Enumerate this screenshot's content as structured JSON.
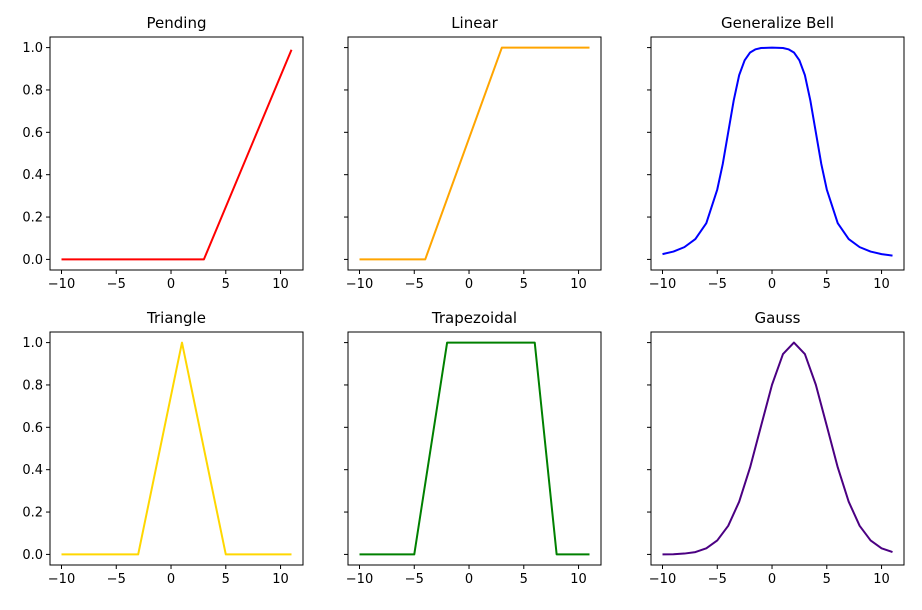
{
  "figure": {
    "x_ticks": [
      "−10",
      "−5",
      "0",
      "5",
      "10"
    ],
    "x_tick_values": [
      -10,
      -5,
      0,
      5,
      10
    ],
    "y_ticks": [
      "0.0",
      "0.2",
      "0.4",
      "0.6",
      "0.8",
      "1.0"
    ],
    "y_tick_values": [
      0,
      0.2,
      0.4,
      0.6,
      0.8,
      1.0
    ],
    "shared_y_axis_per_row": true
  },
  "chart_data": [
    {
      "type": "line",
      "title": "Pending",
      "xlabel": "",
      "ylabel": "",
      "xlim": [
        -11.05,
        12.05
      ],
      "ylim": [
        -0.05,
        1.05
      ],
      "grid": false,
      "color": "#ff0000",
      "series": [
        {
          "x": [
            -10,
            3,
            11
          ],
          "y": [
            0,
            0,
            0.99
          ]
        }
      ]
    },
    {
      "type": "line",
      "title": "Linear",
      "xlabel": "",
      "ylabel": "",
      "xlim": [
        -11.05,
        12.05
      ],
      "ylim": [
        -0.05,
        1.05
      ],
      "grid": false,
      "color": "#ffa500",
      "series": [
        {
          "x": [
            -10,
            -4,
            3,
            11
          ],
          "y": [
            0,
            0,
            1,
            1
          ]
        }
      ]
    },
    {
      "type": "line",
      "title": "Generalize Bell",
      "xlabel": "",
      "ylabel": "",
      "xlim": [
        -11.05,
        12.05
      ],
      "ylim": [
        -0.05,
        1.05
      ],
      "grid": false,
      "color": "#0000ff",
      "series": [
        {
          "x": [
            -10,
            -9,
            -8,
            -7,
            -6,
            -5,
            -4.5,
            -4,
            -3.5,
            -3,
            -2.5,
            -2,
            -1.5,
            -1,
            0,
            1,
            1.5,
            2,
            2.5,
            3,
            3.5,
            4,
            4.5,
            5,
            6,
            7,
            8,
            9,
            10,
            11
          ],
          "y": [
            0.025,
            0.037,
            0.058,
            0.096,
            0.171,
            0.33,
            0.45,
            0.6,
            0.75,
            0.87,
            0.94,
            0.977,
            0.992,
            0.998,
            1.0,
            0.998,
            0.992,
            0.977,
            0.94,
            0.87,
            0.75,
            0.6,
            0.45,
            0.33,
            0.171,
            0.096,
            0.058,
            0.037,
            0.025,
            0.018
          ]
        }
      ]
    },
    {
      "type": "line",
      "title": "Triangle",
      "xlabel": "",
      "ylabel": "",
      "xlim": [
        -11.05,
        12.05
      ],
      "ylim": [
        -0.05,
        1.05
      ],
      "grid": false,
      "color": "#ffd700",
      "series": [
        {
          "x": [
            -10,
            -3,
            1,
            5,
            11
          ],
          "y": [
            0,
            0,
            1,
            0,
            0
          ]
        }
      ]
    },
    {
      "type": "line",
      "title": "Trapezoidal",
      "xlabel": "",
      "ylabel": "",
      "xlim": [
        -11.05,
        12.05
      ],
      "ylim": [
        -0.05,
        1.05
      ],
      "grid": false,
      "color": "#008000",
      "series": [
        {
          "x": [
            -10,
            -5,
            -2,
            6,
            8,
            11
          ],
          "y": [
            0,
            0,
            1,
            1,
            0,
            0
          ]
        }
      ]
    },
    {
      "type": "line",
      "title": "Gauss",
      "xlabel": "",
      "ylabel": "",
      "xlim": [
        -11.05,
        12.05
      ],
      "ylim": [
        -0.05,
        1.05
      ],
      "grid": false,
      "color": "#4b0082",
      "series": [
        {
          "x": [
            -10,
            -9,
            -8,
            -7,
            -6,
            -5,
            -4,
            -3,
            -2,
            -1,
            0,
            1,
            2,
            3,
            4,
            5,
            6,
            7,
            8,
            9,
            10,
            11
          ],
          "y": [
            0.0,
            0.001,
            0.004,
            0.011,
            0.029,
            0.066,
            0.135,
            0.249,
            0.411,
            0.607,
            0.801,
            0.946,
            1.0,
            0.946,
            0.801,
            0.607,
            0.411,
            0.249,
            0.135,
            0.066,
            0.029,
            0.011
          ]
        }
      ]
    }
  ]
}
